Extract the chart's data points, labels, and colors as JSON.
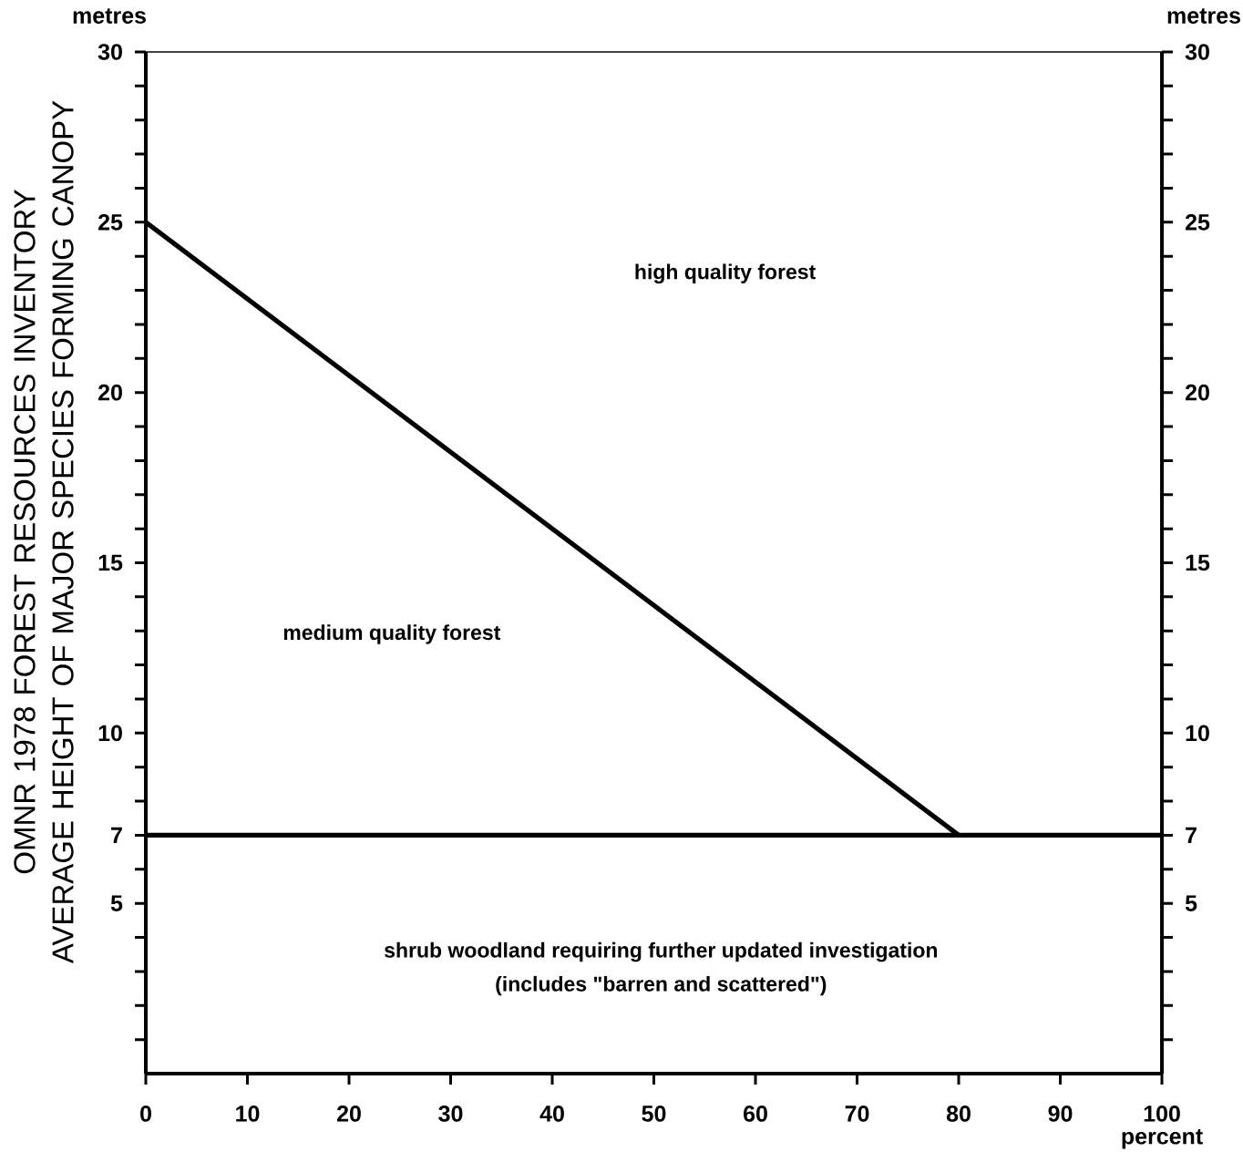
{
  "chart_data": {
    "type": "line",
    "ylabel": "OMNR 1978 FOREST RESOURCES INVENTORY\nAVERAGE HEIGHT OF MAJOR SPECIES FORMING CANOPY",
    "y2label": "metres",
    "xlabel": "percent",
    "xlim": [
      0,
      100
    ],
    "xticks": [
      0,
      10,
      20,
      30,
      40,
      50,
      60,
      70,
      80,
      90,
      100
    ],
    "ylim": [
      0,
      30
    ],
    "yticks": [
      {
        "value": 1,
        "label": null
      },
      {
        "value": 2,
        "label": null
      },
      {
        "value": 3,
        "label": null
      },
      {
        "value": 4,
        "label": null
      },
      5,
      {
        "value": 6,
        "label": null
      },
      7,
      {
        "value": 8,
        "label": null
      },
      {
        "value": 9,
        "label": null
      },
      10,
      {
        "value": 11,
        "label": null
      },
      {
        "value": 12,
        "label": null
      },
      {
        "value": 13,
        "label": null
      },
      {
        "value": 14,
        "label": null
      },
      15,
      {
        "value": 16,
        "label": null
      },
      {
        "value": 17,
        "label": null
      },
      {
        "value": 18,
        "label": null
      },
      {
        "value": 19,
        "label": null
      },
      20,
      {
        "value": 21,
        "label": null
      },
      {
        "value": 22,
        "label": null
      },
      {
        "value": 23,
        "label": null
      },
      {
        "value": 24,
        "label": null
      },
      25,
      {
        "value": 26,
        "label": null
      },
      {
        "value": 27,
        "label": null
      },
      {
        "value": 28,
        "label": null
      },
      {
        "value": 29,
        "label": null
      },
      30
    ],
    "y2lim": [
      0,
      30
    ],
    "y2ticks": [
      {
        "value": 1,
        "label": null
      },
      {
        "value": 2,
        "label": null
      },
      {
        "value": 3,
        "label": null
      },
      {
        "value": 4,
        "label": null
      },
      5,
      {
        "value": 6,
        "label": null
      },
      7,
      {
        "value": 8,
        "label": null
      },
      {
        "value": 9,
        "label": null
      },
      10,
      {
        "value": 11,
        "label": null
      },
      {
        "value": 12,
        "label": null
      },
      {
        "value": 13,
        "label": null
      },
      {
        "value": 14,
        "label": null
      },
      15,
      {
        "value": 16,
        "label": null
      },
      {
        "value": 17,
        "label": null
      },
      {
        "value": 18,
        "label": null
      },
      {
        "value": 19,
        "label": null
      },
      20,
      {
        "value": 21,
        "label": null
      },
      {
        "value": 22,
        "label": null
      },
      {
        "value": 23,
        "label": null
      },
      {
        "value": 24,
        "label": null
      },
      25,
      {
        "value": 26,
        "label": null
      },
      {
        "value": 27,
        "label": null
      },
      {
        "value": 28,
        "label": null
      },
      {
        "value": 29,
        "label": null
      },
      30
    ],
    "series": [
      {
        "color": "#000000",
        "x": [
          0,
          80
        ],
        "values": [
          25,
          7
        ]
      },
      {
        "color": "#000000",
        "x": [
          0,
          100
        ],
        "values": [
          7,
          7
        ]
      }
    ],
    "annotations": [
      "metres",
      "high quality forest",
      "medium quality forest",
      "shrub woodland requiring further updated investigation",
      "(includes \"barren and scattered\")"
    ]
  }
}
